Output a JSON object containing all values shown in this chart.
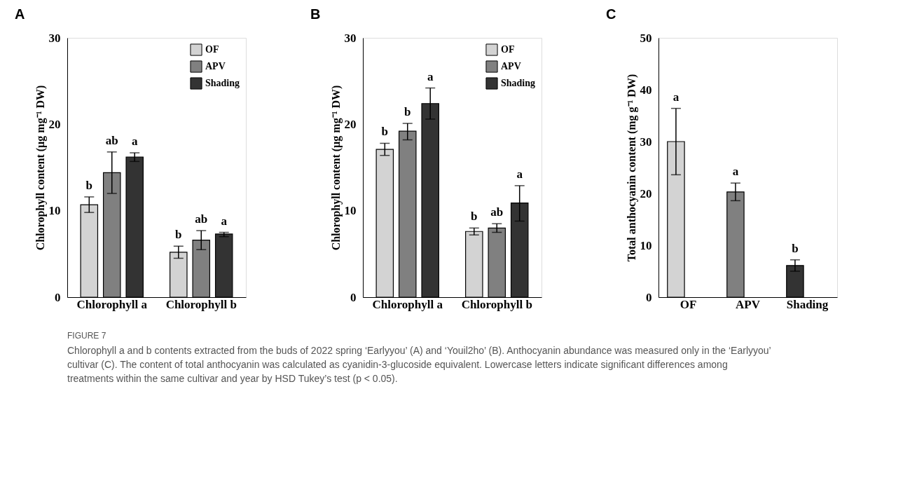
{
  "chart_data": [
    {
      "type": "bar",
      "title": "A",
      "ylabel": "Chlorophyll content (µg mg⁻¹ DW)",
      "categories": [
        "Chlorophyll a",
        "Chlorophyll b"
      ],
      "ylim": [
        0,
        30
      ],
      "yticks": [
        0,
        10,
        20,
        30
      ],
      "legend": "top right",
      "series": [
        {
          "name": "OF",
          "color": "#d3d3d3",
          "values": [
            10.7,
            5.2
          ],
          "errors": [
            [
              9.8,
              11.6
            ],
            [
              4.5,
              5.9
            ]
          ],
          "value_labels": [
            "b",
            "b"
          ]
        },
        {
          "name": "APV",
          "color": "#808080",
          "values": [
            14.4,
            6.6
          ],
          "errors": [
            [
              12.0,
              16.8
            ],
            [
              5.5,
              7.7
            ]
          ],
          "value_labels": [
            "ab",
            "ab"
          ]
        },
        {
          "name": "Shading",
          "color": "#333333",
          "values": [
            16.2,
            7.3
          ],
          "errors": [
            [
              15.7,
              16.7
            ],
            [
              7.0,
              7.5
            ]
          ],
          "value_labels": [
            "a",
            "a"
          ]
        }
      ],
      "annotations": [
        "FIGURE 7",
        "Chlorophyll a and b contents extracted from the buds of 2022 spring ‘Earlyyou’ (A) and ‘Youil2ho’ (B). Anthocyanin abundance was measured only in the ‘Earlyyou’ cultivar (C). The content of total anthocyanin was calculated as cyanidin-3-glucoside equivalent. Lowercase letters indicate significant differences among treatments within the same cultivar and year by HSD Tukey’s test (p < 0.05)."
      ]
    },
    {
      "type": "bar",
      "title": "B",
      "ylabel": "Chlorophyll content (µg mg⁻¹ DW)",
      "categories": [
        "Chlorophyll a",
        "Chlorophyll b"
      ],
      "ylim": [
        0,
        30
      ],
      "yticks": [
        0,
        10,
        20,
        30
      ],
      "legend": "top right",
      "series": [
        {
          "name": "OF",
          "color": "#d3d3d3",
          "values": [
            17.1,
            7.6
          ],
          "errors": [
            [
              16.4,
              17.8
            ],
            [
              7.2,
              8.0
            ]
          ],
          "value_labels": [
            "b",
            "b"
          ]
        },
        {
          "name": "APV",
          "color": "#808080",
          "values": [
            19.2,
            8.0
          ],
          "errors": [
            [
              18.2,
              20.1
            ],
            [
              7.5,
              8.5
            ]
          ],
          "value_labels": [
            "b",
            "ab"
          ]
        },
        {
          "name": "Shading",
          "color": "#333333",
          "values": [
            22.4,
            10.9
          ],
          "errors": [
            [
              20.6,
              24.2
            ],
            [
              8.8,
              12.9
            ]
          ],
          "value_labels": [
            "a",
            "a"
          ]
        }
      ]
    },
    {
      "type": "bar",
      "title": "C",
      "ylabel": "Total anthocyanin content (mg g⁻¹ DW)",
      "categories": [
        "OF",
        "APV",
        "Shading"
      ],
      "ylim": [
        0,
        50
      ],
      "yticks": [
        0,
        10,
        20,
        30,
        40,
        50
      ],
      "values": [
        30.0,
        20.3,
        6.1
      ],
      "colors": [
        "#d3d3d3",
        "#808080",
        "#333333"
      ],
      "errors": [
        [
          23.6,
          36.4
        ],
        [
          18.6,
          22.0
        ],
        [
          5.0,
          7.2
        ]
      ],
      "value_labels": [
        "a",
        "a",
        "b"
      ]
    }
  ]
}
